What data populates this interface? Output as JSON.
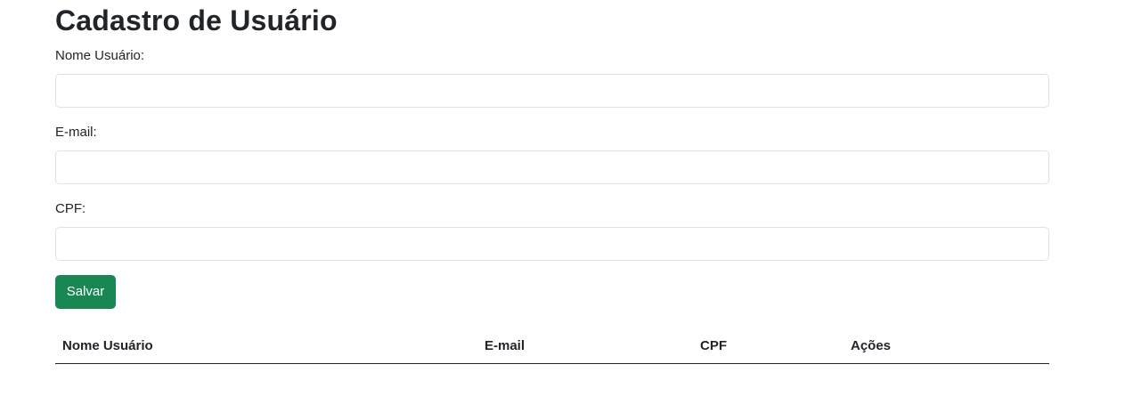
{
  "page": {
    "title": "Cadastro de Usuário"
  },
  "form": {
    "name_label": "Nome Usuário:",
    "name_value": "",
    "email_label": "E-mail:",
    "email_value": "",
    "cpf_label": "CPF:",
    "cpf_value": "",
    "save_label": "Salvar"
  },
  "table": {
    "headers": [
      "Nome Usuário",
      "E-mail",
      "CPF",
      "Ações"
    ],
    "rows": []
  },
  "colors": {
    "save_button": "#198754",
    "input_border": "#dee2e6",
    "text": "#212529"
  }
}
